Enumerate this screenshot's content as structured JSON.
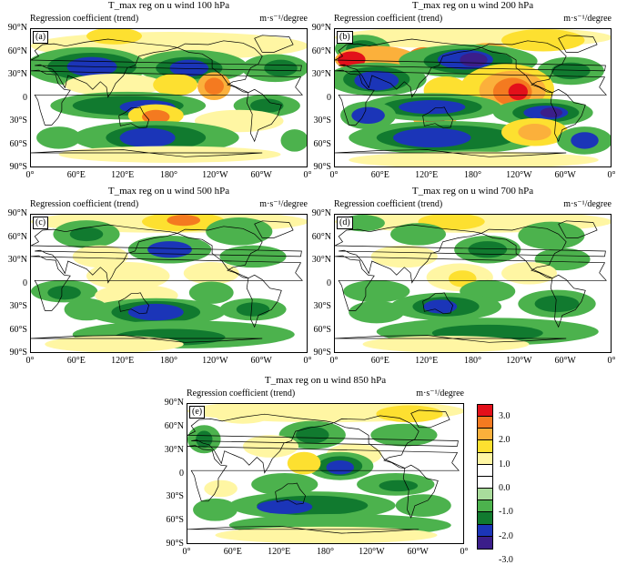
{
  "colors": {
    "levels": [
      "#e3101a",
      "#f47a20",
      "#fbb03b",
      "#fde030",
      "#fff6a3",
      "#ffffff",
      "#ffffff",
      "#a9dc9c",
      "#4cb24d",
      "#117a2f",
      "#1b35b8",
      "#3b1e8a"
    ],
    "coastline": "#000000"
  },
  "panels": [
    {
      "letter": "(a)",
      "title": "T_max reg on u wind 100 hPa",
      "label": "Regression coefficient (trend)",
      "unit": "m·s⁻¹/degree"
    },
    {
      "letter": "(b)",
      "title": "T_max reg on u wind 200 hPa",
      "label": "Regression coefficient (trend)",
      "unit": "m·s⁻¹/degree"
    },
    {
      "letter": "(c)",
      "title": "T_max reg on u wind 500 hPa",
      "label": "Regression coefficient (trend)",
      "unit": "m·s⁻¹/degree"
    },
    {
      "letter": "(d)",
      "title": "T_max reg on u wind 700 hPa",
      "label": "Regression coefficient (trend)",
      "unit": "m·s⁻¹/degree"
    },
    {
      "letter": "(e)",
      "title": "T_max reg on u wind 850 hPa",
      "label": "Regression coefficient (trend)",
      "unit": "m·s⁻¹/degree"
    }
  ],
  "y_ticks": [
    "90°N",
    "60°N",
    "30°N",
    "0",
    "30°S",
    "60°S",
    "90°S"
  ],
  "x_ticks": [
    "0°",
    "60°E",
    "120°E",
    "180°",
    "120°W",
    "60°W",
    "0°"
  ],
  "colorbar": {
    "labels": [
      "3.0",
      "2.0",
      "1.0",
      "0.0",
      "-1.0",
      "-2.0",
      "-3.0"
    ]
  }
}
